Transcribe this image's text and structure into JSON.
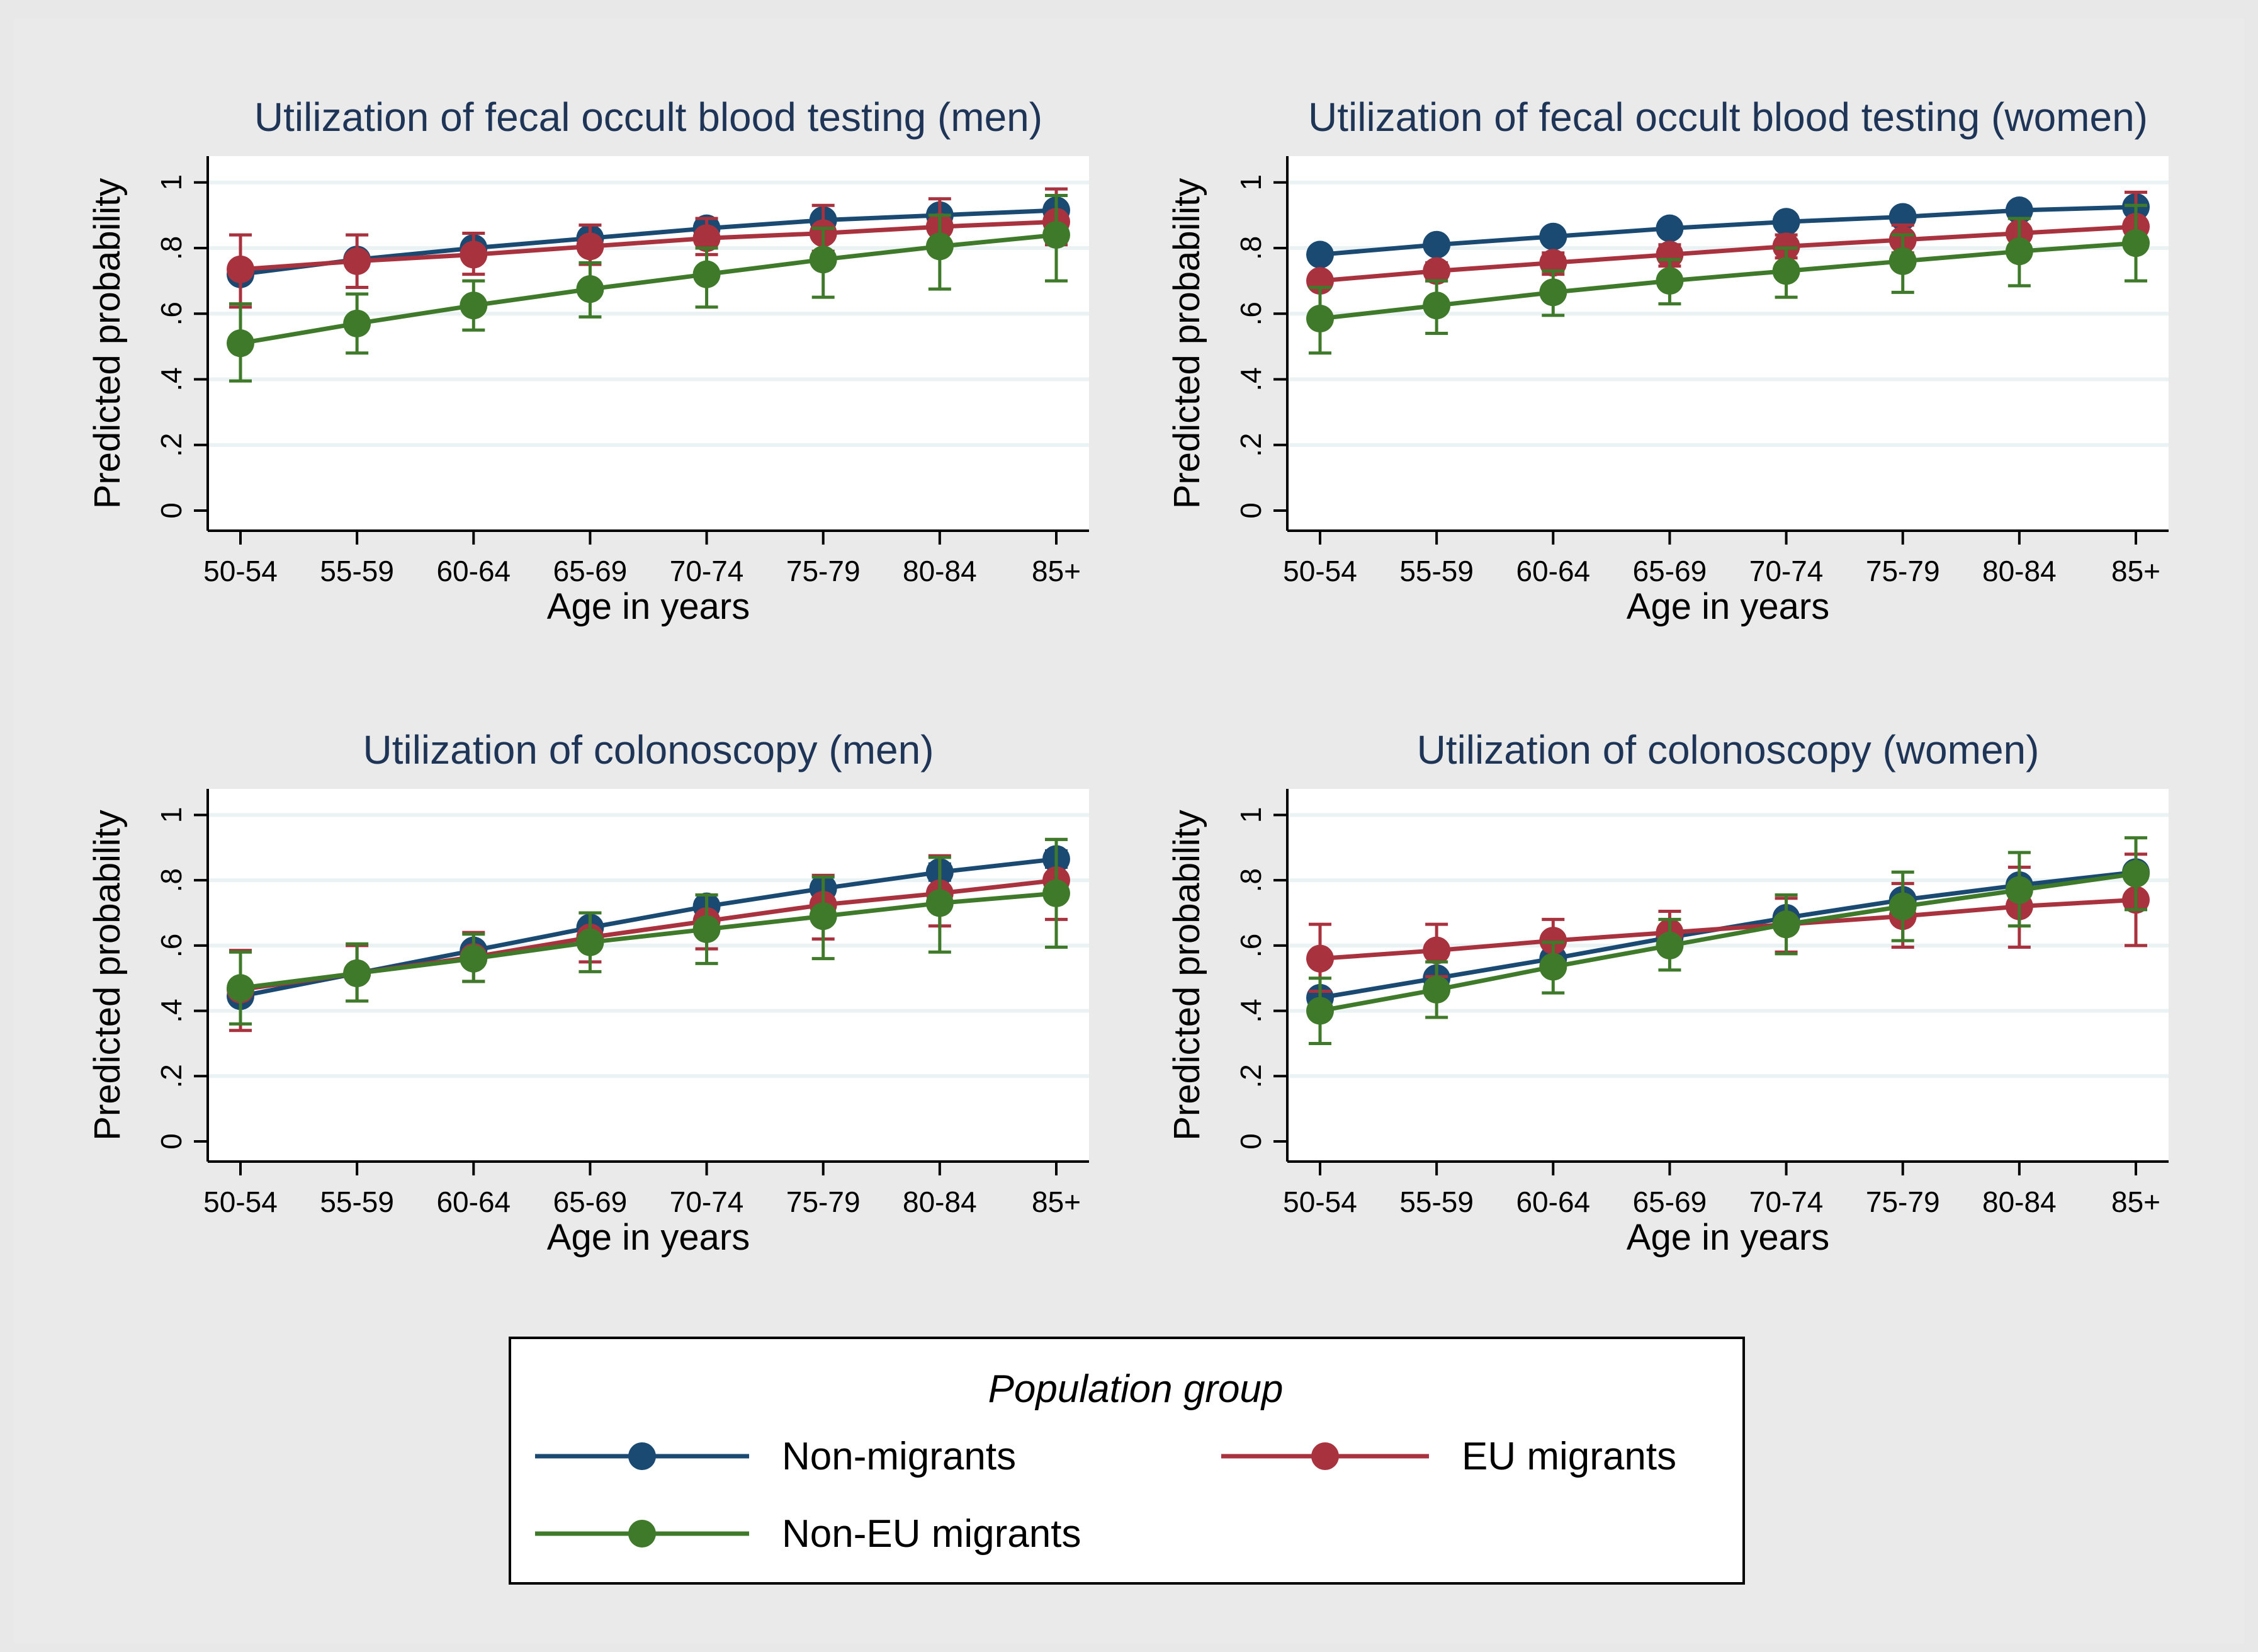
{
  "chart_data": [
    {
      "type": "line",
      "title": "Utilization of fecal occult blood testing (men)",
      "xlabel": "Age in years",
      "ylabel": "Predicted probability",
      "ylim": [
        0,
        1.08
      ],
      "yticks": [
        0,
        0.2,
        0.4,
        0.6,
        0.8,
        1
      ],
      "ytick_labels": [
        "0",
        ".2",
        ".4",
        ".6",
        ".8",
        "1"
      ],
      "categories": [
        "50-54",
        "55-59",
        "60-64",
        "65-69",
        "70-74",
        "75-79",
        "80-84",
        "85+"
      ],
      "series": [
        {
          "name": "Non-migrants",
          "color": "#1a4a72",
          "values": [
            0.72,
            0.765,
            0.8,
            0.83,
            0.86,
            0.885,
            0.9,
            0.915
          ],
          "lower": [
            0.7,
            0.755,
            0.79,
            0.82,
            0.85,
            0.87,
            0.88,
            0.895
          ],
          "upper": [
            0.74,
            0.775,
            0.81,
            0.84,
            0.87,
            0.9,
            0.92,
            0.935
          ]
        },
        {
          "name": "EU migrants",
          "color": "#a8323e",
          "values": [
            0.735,
            0.76,
            0.78,
            0.805,
            0.83,
            0.845,
            0.865,
            0.88
          ],
          "lower": [
            0.62,
            0.68,
            0.72,
            0.75,
            0.78,
            0.79,
            0.8,
            0.81
          ],
          "upper": [
            0.84,
            0.84,
            0.845,
            0.87,
            0.89,
            0.93,
            0.95,
            0.98
          ]
        },
        {
          "name": "Non-EU migrants",
          "color": "#3f7a2a",
          "values": [
            0.51,
            0.57,
            0.625,
            0.675,
            0.72,
            0.765,
            0.805,
            0.84
          ],
          "lower": [
            0.395,
            0.48,
            0.55,
            0.59,
            0.62,
            0.65,
            0.675,
            0.7
          ],
          "upper": [
            0.63,
            0.66,
            0.7,
            0.755,
            0.8,
            0.86,
            0.9,
            0.96
          ]
        }
      ]
    },
    {
      "type": "line",
      "title": "Utilization of fecal occult blood testing (women)",
      "xlabel": "Age in years",
      "ylabel": "Predicted probability",
      "ylim": [
        0,
        1.08
      ],
      "yticks": [
        0,
        0.2,
        0.4,
        0.6,
        0.8,
        1
      ],
      "ytick_labels": [
        "0",
        ".2",
        ".4",
        ".6",
        ".8",
        "1"
      ],
      "categories": [
        "50-54",
        "55-59",
        "60-64",
        "65-69",
        "70-74",
        "75-79",
        "80-84",
        "85+"
      ],
      "series": [
        {
          "name": "Non-migrants",
          "color": "#1a4a72",
          "values": [
            0.78,
            0.81,
            0.835,
            0.86,
            0.88,
            0.895,
            0.915,
            0.925
          ],
          "lower": [
            0.77,
            0.8,
            0.825,
            0.85,
            0.87,
            0.885,
            0.9,
            0.91
          ],
          "upper": [
            0.79,
            0.82,
            0.845,
            0.87,
            0.89,
            0.905,
            0.93,
            0.94
          ]
        },
        {
          "name": "EU migrants",
          "color": "#a8323e",
          "values": [
            0.7,
            0.73,
            0.755,
            0.78,
            0.805,
            0.825,
            0.845,
            0.865
          ],
          "lower": [
            0.68,
            0.7,
            0.72,
            0.745,
            0.77,
            0.785,
            0.8,
            0.81
          ],
          "upper": [
            0.72,
            0.755,
            0.785,
            0.81,
            0.84,
            0.87,
            0.89,
            0.97
          ]
        },
        {
          "name": "Non-EU migrants",
          "color": "#3f7a2a",
          "values": [
            0.585,
            0.625,
            0.665,
            0.7,
            0.73,
            0.76,
            0.79,
            0.815
          ],
          "lower": [
            0.48,
            0.54,
            0.595,
            0.63,
            0.65,
            0.665,
            0.685,
            0.7
          ],
          "upper": [
            0.68,
            0.7,
            0.73,
            0.765,
            0.8,
            0.84,
            0.89,
            0.93
          ]
        }
      ]
    },
    {
      "type": "line",
      "title": "Utilization of colonoscopy (men)",
      "xlabel": "Age in years",
      "ylabel": "Predicted probability",
      "ylim": [
        0,
        1.08
      ],
      "yticks": [
        0,
        0.2,
        0.4,
        0.6,
        0.8,
        1
      ],
      "ytick_labels": [
        "0",
        ".2",
        ".4",
        ".6",
        ".8",
        "1"
      ],
      "categories": [
        "50-54",
        "55-59",
        "60-64",
        "65-69",
        "70-74",
        "75-79",
        "80-84",
        "85+"
      ],
      "series": [
        {
          "name": "Non-migrants",
          "color": "#1a4a72",
          "values": [
            0.445,
            0.515,
            0.585,
            0.655,
            0.72,
            0.775,
            0.825,
            0.865
          ],
          "lower": [
            0.425,
            0.5,
            0.57,
            0.64,
            0.705,
            0.76,
            0.8,
            0.84
          ],
          "upper": [
            0.465,
            0.53,
            0.6,
            0.67,
            0.735,
            0.79,
            0.85,
            0.89
          ]
        },
        {
          "name": "EU migrants",
          "color": "#a8323e",
          "values": [
            0.465,
            0.515,
            0.565,
            0.625,
            0.675,
            0.725,
            0.76,
            0.8
          ],
          "lower": [
            0.34,
            0.43,
            0.49,
            0.55,
            0.59,
            0.62,
            0.66,
            0.68
          ],
          "upper": [
            0.585,
            0.6,
            0.64,
            0.7,
            0.755,
            0.815,
            0.875,
            0.925
          ]
        },
        {
          "name": "Non-EU migrants",
          "color": "#3f7a2a",
          "values": [
            0.47,
            0.515,
            0.56,
            0.61,
            0.65,
            0.69,
            0.73,
            0.76
          ],
          "lower": [
            0.36,
            0.43,
            0.49,
            0.52,
            0.545,
            0.56,
            0.58,
            0.595
          ],
          "upper": [
            0.58,
            0.605,
            0.635,
            0.7,
            0.755,
            0.81,
            0.87,
            0.925
          ]
        }
      ]
    },
    {
      "type": "line",
      "title": "Utilization of colonoscopy (women)",
      "xlabel": "Age in years",
      "ylabel": "Predicted probability",
      "ylim": [
        0,
        1.08
      ],
      "yticks": [
        0,
        0.2,
        0.4,
        0.6,
        0.8,
        1
      ],
      "ytick_labels": [
        "0",
        ".2",
        ".4",
        ".6",
        ".8",
        "1"
      ],
      "categories": [
        "50-54",
        "55-59",
        "60-64",
        "65-69",
        "70-74",
        "75-79",
        "80-84",
        "85+"
      ],
      "series": [
        {
          "name": "Non-migrants",
          "color": "#1a4a72",
          "values": [
            0.44,
            0.5,
            0.56,
            0.625,
            0.685,
            0.74,
            0.785,
            0.825
          ],
          "lower": [
            0.42,
            0.485,
            0.545,
            0.61,
            0.67,
            0.725,
            0.77,
            0.805
          ],
          "upper": [
            0.46,
            0.515,
            0.575,
            0.64,
            0.7,
            0.755,
            0.8,
            0.845
          ]
        },
        {
          "name": "EU migrants",
          "color": "#a8323e",
          "values": [
            0.56,
            0.585,
            0.615,
            0.64,
            0.665,
            0.69,
            0.72,
            0.74
          ],
          "lower": [
            0.46,
            0.505,
            0.55,
            0.58,
            0.58,
            0.595,
            0.595,
            0.6
          ],
          "upper": [
            0.665,
            0.665,
            0.68,
            0.705,
            0.745,
            0.79,
            0.84,
            0.88
          ]
        },
        {
          "name": "Non-EU migrants",
          "color": "#3f7a2a",
          "values": [
            0.4,
            0.465,
            0.535,
            0.6,
            0.665,
            0.72,
            0.77,
            0.82
          ],
          "lower": [
            0.3,
            0.38,
            0.455,
            0.525,
            0.575,
            0.615,
            0.66,
            0.71
          ],
          "upper": [
            0.5,
            0.55,
            0.61,
            0.68,
            0.755,
            0.825,
            0.885,
            0.93
          ]
        }
      ]
    }
  ],
  "legend": {
    "title": "Population group",
    "items": [
      {
        "label": "Non-migrants",
        "color": "#1a4a72"
      },
      {
        "label": "EU migrants",
        "color": "#a8323e"
      },
      {
        "label": "Non-EU migrants",
        "color": "#3f7a2a"
      }
    ]
  }
}
